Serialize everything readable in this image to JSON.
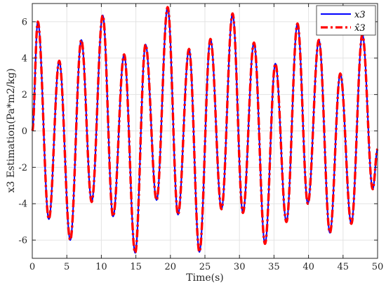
{
  "chart_data": {
    "type": "line",
    "title": "",
    "xlabel": "Time(s)",
    "ylabel": "x3 Estimation(Pa*m2/kg)",
    "xlim": [
      0,
      50
    ],
    "ylim": [
      -7,
      7
    ],
    "xticks": [
      "0",
      "5",
      "10",
      "15",
      "20",
      "25",
      "30",
      "35",
      "40",
      "45",
      "50"
    ],
    "yticks": [
      "-6",
      "-4",
      "-2",
      "0",
      "2",
      "4",
      "6"
    ],
    "grid": true,
    "legend_position": "top-right",
    "extrema": [
      {
        "t": 0.0,
        "v": 0.0
      },
      {
        "t": 0.8,
        "v": 6.0
      },
      {
        "t": 2.4,
        "v": -4.85
      },
      {
        "t": 3.9,
        "v": 3.85
      },
      {
        "t": 5.5,
        "v": -6.0
      },
      {
        "t": 7.1,
        "v": 5.0
      },
      {
        "t": 8.6,
        "v": -3.9
      },
      {
        "t": 10.2,
        "v": 6.35
      },
      {
        "t": 11.7,
        "v": -4.7
      },
      {
        "t": 13.3,
        "v": 4.2
      },
      {
        "t": 14.9,
        "v": -6.7
      },
      {
        "t": 16.4,
        "v": 4.75
      },
      {
        "t": 18.0,
        "v": -3.8
      },
      {
        "t": 19.6,
        "v": 6.8
      },
      {
        "t": 21.1,
        "v": -4.6
      },
      {
        "t": 22.7,
        "v": 4.5
      },
      {
        "t": 24.2,
        "v": -6.65
      },
      {
        "t": 25.8,
        "v": 5.05
      },
      {
        "t": 27.4,
        "v": -4.3
      },
      {
        "t": 29.0,
        "v": 6.45
      },
      {
        "t": 30.5,
        "v": -4.5
      },
      {
        "t": 32.1,
        "v": 4.85
      },
      {
        "t": 33.7,
        "v": -6.2
      },
      {
        "t": 35.2,
        "v": 3.7
      },
      {
        "t": 36.8,
        "v": -5.0
      },
      {
        "t": 38.4,
        "v": 5.9
      },
      {
        "t": 39.9,
        "v": -4.0
      },
      {
        "t": 41.5,
        "v": 5.0
      },
      {
        "t": 43.1,
        "v": -5.6
      },
      {
        "t": 44.6,
        "v": 3.15
      },
      {
        "t": 46.2,
        "v": -5.1
      },
      {
        "t": 47.8,
        "v": 5.3
      },
      {
        "t": 49.3,
        "v": -3.2
      },
      {
        "t": 50.0,
        "v": -1.0
      }
    ],
    "series": [
      {
        "name": "x3",
        "color": "#0000ff",
        "style": "solid"
      },
      {
        "name": "x̂3",
        "color": "#ff0000",
        "style": "dashed"
      }
    ]
  }
}
